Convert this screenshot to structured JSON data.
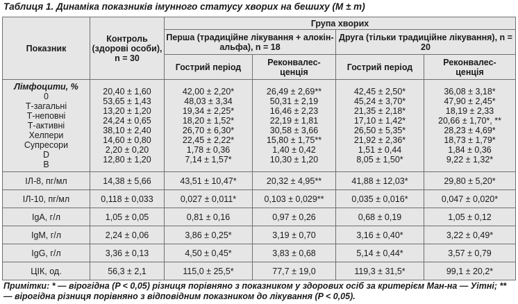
{
  "caption": "Таблиця 1. Динаміка показників імунного статусу хворих на бешиху (M ± m)",
  "header": {
    "indicator": "Показник",
    "control": "Контроль (здорові особи), n = 30",
    "patients_group": "Група хворих",
    "group1": "Перша (традиційне лікування + алокін-альфа), n = 18",
    "group2": "Друга (тільки традиційне лікування), n = 20",
    "acute": "Гострий період",
    "convalescence": "Реконвалес-\nценція"
  },
  "lymphocytes": {
    "title": "Лімфоцити, %",
    "labels": [
      "0",
      "Т-загальні",
      "Т-неповні",
      "Т-активні",
      "Хелпери",
      "Супресори",
      "D",
      "В"
    ],
    "control": [
      "20,40 ± 1,60",
      "53,65 ± 1,43",
      "13,20 ± 1,20",
      "24,24 ± 0,65",
      "38,10 ± 2,40",
      "14,60 ± 0,80",
      "2,20 ± 0,20",
      "12,80 ± 1,20"
    ],
    "g1_acute": [
      "42,00 ± 2,20*",
      "48,03 ± 3,34",
      "19,34 ± 2,25*",
      "18,20 ± 1,52*",
      "26,70 ± 6,30*",
      "22,45 ± 2,22*",
      "1,78 ± 0,36",
      "7,14 ± 1,57*"
    ],
    "g1_conv": [
      "26,49 ± 2,69**",
      "50,31 ± 2,19",
      "16,46 ± 2,23",
      "22,19 ± 1,81",
      "30,58 ± 3,66",
      "15,80 ± 1,75**",
      "1,40 ± 0,42",
      "10,30 ± 1,20"
    ],
    "g2_acute": [
      "42,45 ± 2,50*",
      "45,24 ± 3,70*",
      "21,35 ± 2,18*",
      "17,10 ± 1,42*",
      "26,50 ± 5,35*",
      "21,92 ± 2,36*",
      "1,51 ± 0,44",
      "8,05 ± 1,50*"
    ],
    "g2_conv": [
      "36,08 ± 3,18*",
      "47,90 ± 2,45*",
      "18,19 ± 2,33",
      "20,66 ± 1,70*, **",
      "28,23 ± 4,69*",
      "18,73 ± 1,79*",
      "1,84 ± 0,36",
      "9,22 ± 1,32*"
    ]
  },
  "rows": [
    {
      "label": "ІЛ-8, пг/мл",
      "control": "14,38 ± 5,66",
      "g1_acute": "43,51 ± 10,47*",
      "g1_conv": "20,32 ± 4,95**",
      "g2_acute": "41,88 ± 12,03*",
      "g2_conv": "29,80 ± 5,20*"
    },
    {
      "label": "ІЛ-10, пг/мл",
      "control": "0,118 ± 0,033",
      "g1_acute": "0,027 ± 0,011*",
      "g1_conv": "0,103 ± 0,029**",
      "g2_acute": "0,035 ± 0,016*",
      "g2_conv": "0,047 ± 0,020*"
    },
    {
      "label": "IgA, г/л",
      "control": "1,05 ± 0,05",
      "g1_acute": "0,81 ± 0,16",
      "g1_conv": "0,97 ± 0,26",
      "g2_acute": "0,68 ± 0,19",
      "g2_conv": "1,05 ± 0,12"
    },
    {
      "label": "IgM, г/л",
      "control": "2,24 ± 0,06",
      "g1_acute": "3,86 ± 0,25*",
      "g1_conv": "3,19 ± 0,70",
      "g2_acute": "3,16 ± 0,40*",
      "g2_conv": "3,22 ± 0,49*"
    },
    {
      "label": "IgG, г/л",
      "control": "3,36 ± 0,13",
      "g1_acute": "4,50 ± 0,45*",
      "g1_conv": "3,83 ± 0,68",
      "g2_acute": "5,14 ± 0,44*",
      "g2_conv": "3,57 ± 0,79"
    },
    {
      "label": "ЦІК, од.",
      "control": "56,3 ± 2,1",
      "g1_acute": "115,0 ± 25,5*",
      "g1_conv": "77,7 ± 19,0",
      "g2_acute": "119,3 ± 31,5*",
      "g2_conv": "99,1 ± 20,2*"
    }
  ],
  "notes": "Примітки: * — вірогідна (P < 0,05) різниця порівняно з показником у здорових осіб за критерієм Ман-на — Уітні; ** — вірогідна різниця порівняно з відповідним показником до лікування (P < 0,05)."
}
